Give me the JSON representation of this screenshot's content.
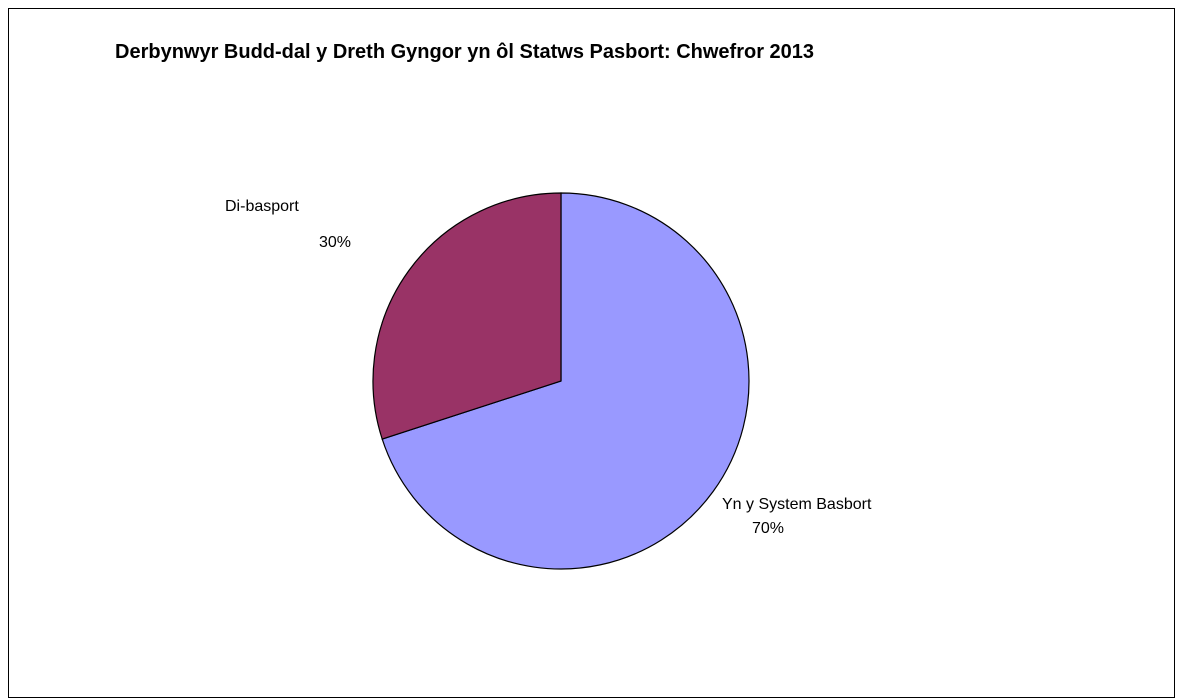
{
  "chart_data": {
    "type": "pie",
    "title": "Derbynwyr Budd-dal y Dreth Gyngor yn ôl Statws Pasbort: Chwefror 2013",
    "slices": [
      {
        "label": "Yn y System Basbort",
        "value": 70,
        "value_label": "70%",
        "color": "#9999ff"
      },
      {
        "label": "Di-basport",
        "value": 30,
        "value_label": "30%",
        "color": "#993366"
      }
    ],
    "start_angle": "12 o'clock",
    "direction": "clockwise",
    "legend": "none"
  }
}
